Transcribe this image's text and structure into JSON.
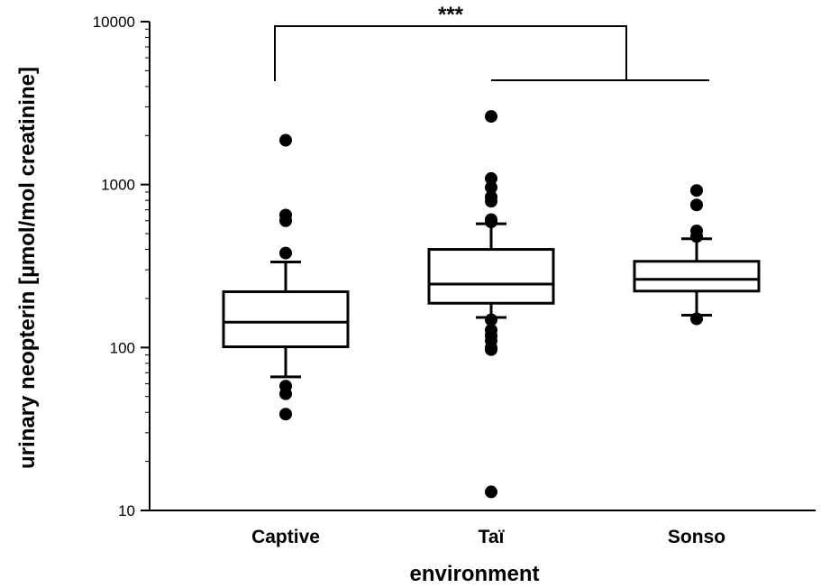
{
  "chart_data": {
    "type": "box",
    "ylabel": "urinary neopterin [µmol/mol creatinine]",
    "xlabel": "environment",
    "y_scale": "log",
    "ylim": [
      10,
      10000
    ],
    "y_ticks": [
      {
        "value": 10,
        "label": "10"
      },
      {
        "value": 100,
        "label": "100"
      },
      {
        "value": 1000,
        "label": "1000"
      },
      {
        "value": 10000,
        "label": "10000"
      }
    ],
    "categories": [
      "Captive",
      "Taï",
      "Sonso"
    ],
    "boxes": [
      {
        "name": "Captive",
        "whisker_low": 66,
        "q1": 101,
        "median": 143,
        "q3": 220,
        "whisker_high": 335,
        "outliers": [
          1870,
          650,
          600,
          380,
          58,
          52,
          39
        ]
      },
      {
        "name": "Taï",
        "whisker_low": 153,
        "q1": 187,
        "median": 245,
        "q3": 400,
        "whisker_high": 575,
        "outliers": [
          2620,
          1090,
          960,
          840,
          790,
          610,
          590,
          148,
          128,
          118,
          110,
          100,
          97,
          13
        ]
      },
      {
        "name": "Sonso",
        "whisker_low": 158,
        "q1": 222,
        "median": 262,
        "q3": 338,
        "whisker_high": 465,
        "outliers": [
          920,
          750,
          520,
          480,
          150
        ]
      }
    ],
    "annotations": [
      {
        "text": "***",
        "from": "Captive",
        "to": [
          "Taï",
          "Sonso"
        ]
      }
    ],
    "grid": false,
    "legend": "none"
  }
}
